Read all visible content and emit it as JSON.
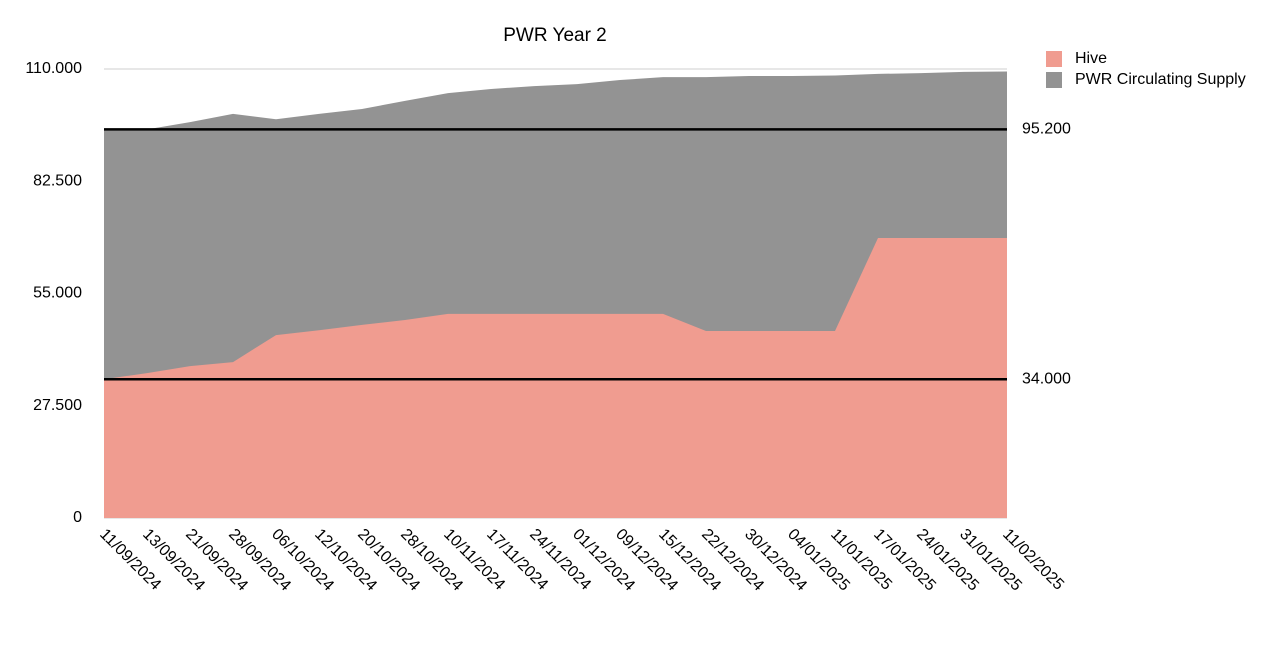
{
  "chart_data": {
    "type": "area",
    "title": "PWR Year 2",
    "categories": [
      "11/09/2024",
      "13/09/2024",
      "21/09/2024",
      "28/09/2024",
      "06/10/2024",
      "12/10/2024",
      "20/10/2024",
      "28/10/2024",
      "10/11/2024",
      "17/11/2024",
      "24/11/2024",
      "01/12/2024",
      "09/12/2024",
      "15/12/2024",
      "22/12/2024",
      "30/12/2024",
      "04/01/2025",
      "11/01/2025",
      "17/01/2025",
      "24/01/2025",
      "31/01/2025",
      "11/02/2025"
    ],
    "series": [
      {
        "name": "Hive",
        "color": "#f09c90",
        "values": [
          34000,
          35500,
          37200,
          38200,
          44800,
          46000,
          47300,
          48500,
          50000,
          50000,
          50000,
          50000,
          50000,
          50000,
          45800,
          45800,
          45800,
          45800,
          68600,
          68600,
          68600,
          68600
        ]
      },
      {
        "name": "PWR Circulating Supply",
        "color": "#939393",
        "values": [
          95200,
          95200,
          97000,
          99000,
          97700,
          99000,
          100200,
          102200,
          104100,
          105100,
          105800,
          106300,
          107300,
          108000,
          108000,
          108300,
          108300,
          108400,
          108800,
          109000,
          109300,
          109400
        ]
      }
    ],
    "ylim": [
      0,
      110000
    ],
    "yticks": [
      0,
      {
        "value": 27500,
        "label": "27.500"
      },
      {
        "value": 55000,
        "label": "55.000"
      },
      {
        "value": 82500,
        "label": "82.500"
      },
      {
        "value": 110000,
        "label": "110.000"
      }
    ],
    "reference_lines": [
      {
        "value": 95200,
        "label": "95.200"
      },
      {
        "value": 34000,
        "label": "34.000"
      }
    ],
    "legend": "top-right"
  }
}
